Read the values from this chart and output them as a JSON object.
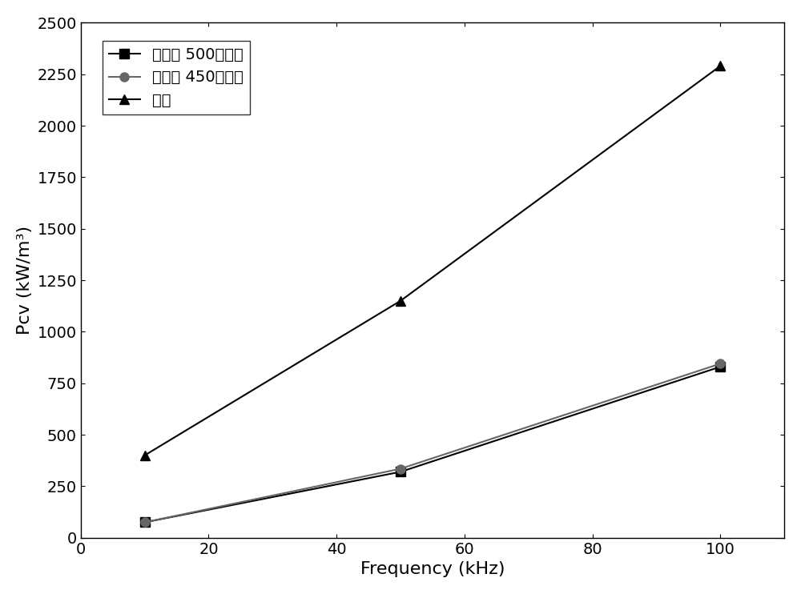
{
  "series": [
    {
      "label": "包覆后 500热处理",
      "x": [
        10,
        50,
        100
      ],
      "y": [
        75,
        320,
        830
      ],
      "marker": "s",
      "color": "#000000",
      "linewidth": 1.5,
      "markersize": 8
    },
    {
      "label": "包覆后 450热处理",
      "x": [
        10,
        50,
        100
      ],
      "y": [
        75,
        335,
        845
      ],
      "marker": "o",
      "color": "#666666",
      "linewidth": 1.5,
      "markersize": 8
    },
    {
      "label": "纯铁",
      "x": [
        10,
        50,
        100
      ],
      "y": [
        400,
        1150,
        2290
      ],
      "marker": "^",
      "color": "#000000",
      "linewidth": 1.5,
      "markersize": 9
    }
  ],
  "xlabel": "Frequency (kHz)",
  "ylabel": "Pcv (kW/m³)",
  "xlim": [
    0,
    110
  ],
  "ylim": [
    0,
    2500
  ],
  "xticks": [
    0,
    20,
    40,
    60,
    80,
    100
  ],
  "yticks": [
    0,
    250,
    500,
    750,
    1000,
    1250,
    1500,
    1750,
    2000,
    2250,
    2500
  ],
  "label_fontsize": 16,
  "tick_fontsize": 14,
  "legend_fontsize": 14,
  "background_color": "#ffffff"
}
